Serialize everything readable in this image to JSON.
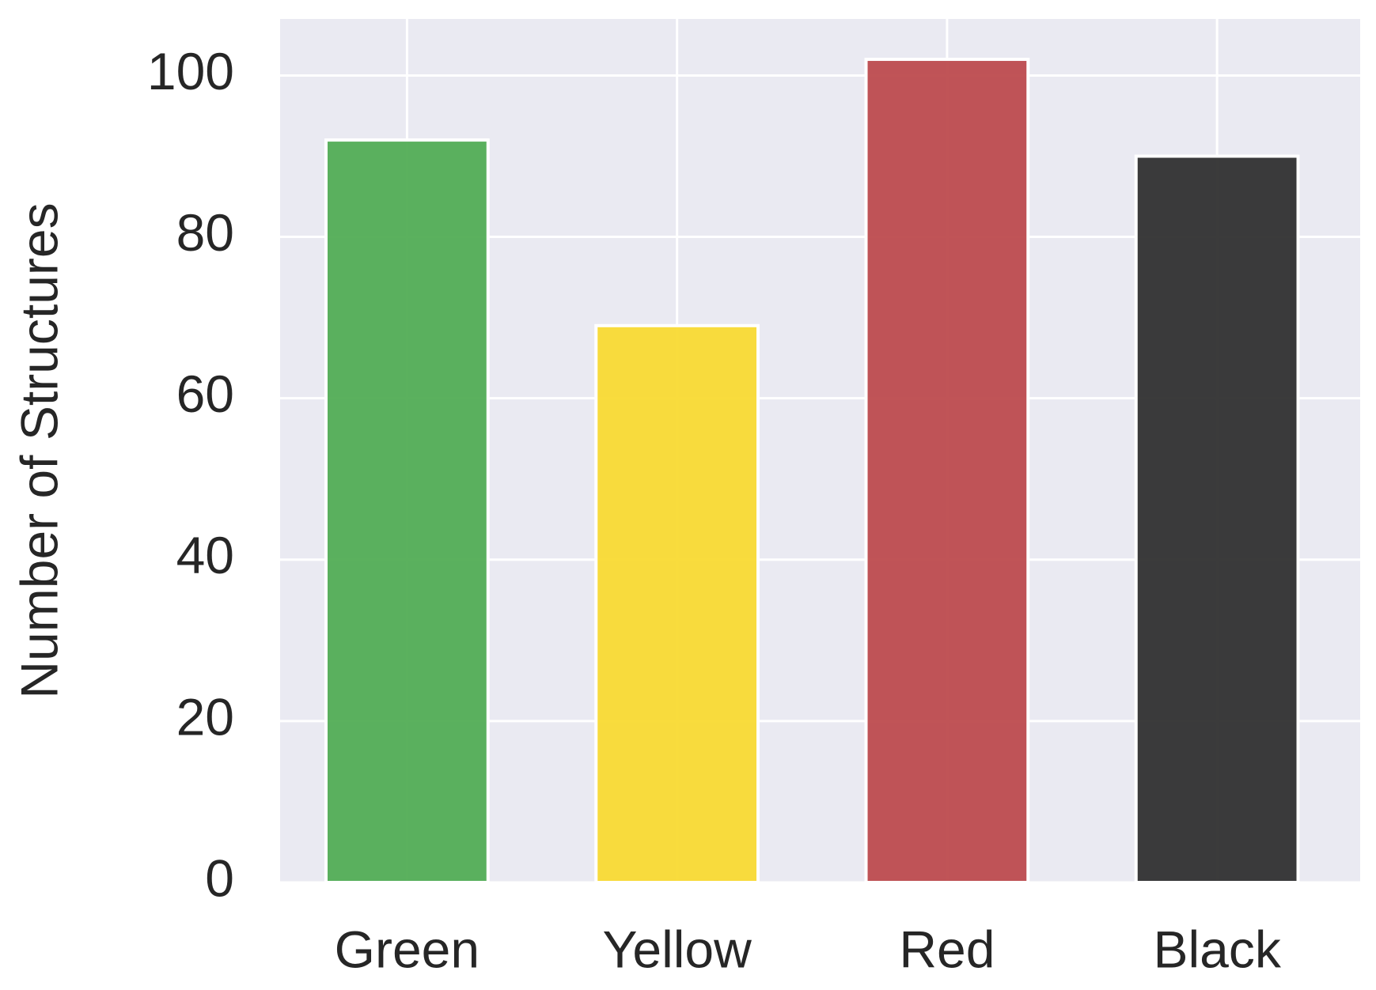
{
  "chart_data": {
    "type": "bar",
    "y_label": "Number of Structures",
    "categories": [
      "Green",
      "Yellow",
      "Red",
      "Black"
    ],
    "values": [
      92,
      69,
      102,
      90
    ],
    "colors": [
      "#52ad55",
      "#f9da33",
      "#bd4b4e",
      "#303030"
    ],
    "ylim": [
      0,
      107
    ],
    "yticks": [
      0,
      20,
      40,
      60,
      80,
      100
    ],
    "grid": true
  }
}
